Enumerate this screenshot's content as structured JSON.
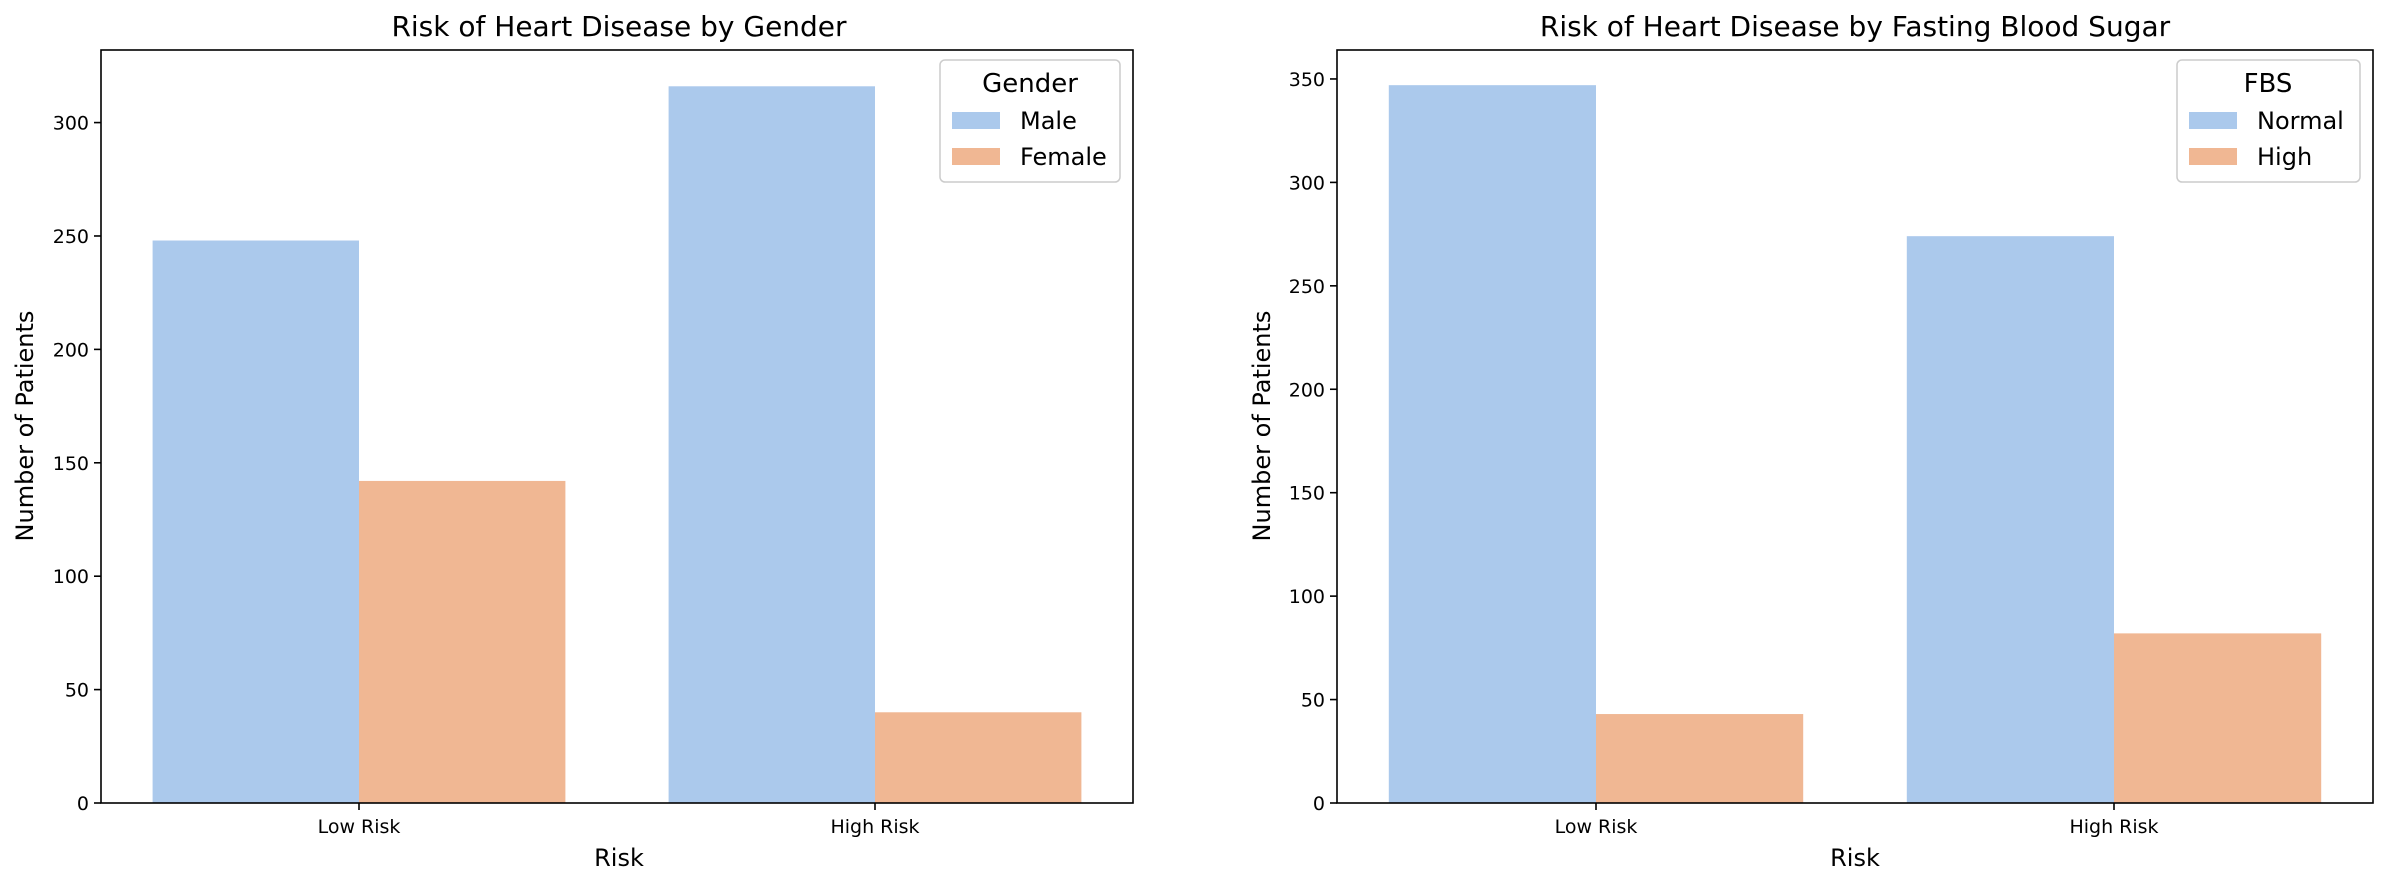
{
  "chart_data": [
    {
      "type": "bar",
      "title": "Risk of Heart Disease by Gender",
      "xlabel": "Risk",
      "ylabel": "Number of Patients",
      "categories": [
        "Low Risk",
        "High Risk"
      ],
      "series": [
        {
          "name": "Male",
          "values": [
            248,
            316
          ],
          "color": "#abc9ec"
        },
        {
          "name": "Female",
          "values": [
            142,
            40
          ],
          "color": "#f0b793"
        }
      ],
      "ylim": [
        0,
        332
      ],
      "yticks": [
        0,
        50,
        100,
        150,
        200,
        250,
        300
      ],
      "legend": {
        "title": "Gender",
        "placement": "top-right"
      },
      "grid": false
    },
    {
      "type": "bar",
      "title": "Risk of Heart Disease by Fasting Blood Sugar",
      "xlabel": "Risk",
      "ylabel": "Number of Patients",
      "categories": [
        "Low Risk",
        "High Risk"
      ],
      "series": [
        {
          "name": "Normal",
          "values": [
            347,
            274
          ],
          "color": "#abc9ec"
        },
        {
          "name": "High",
          "values": [
            43,
            82
          ],
          "color": "#f0b793"
        }
      ],
      "ylim": [
        0,
        364
      ],
      "yticks": [
        0,
        50,
        100,
        150,
        200,
        250,
        300,
        350
      ],
      "legend": {
        "title": "FBS",
        "placement": "top-right"
      },
      "grid": false
    }
  ]
}
